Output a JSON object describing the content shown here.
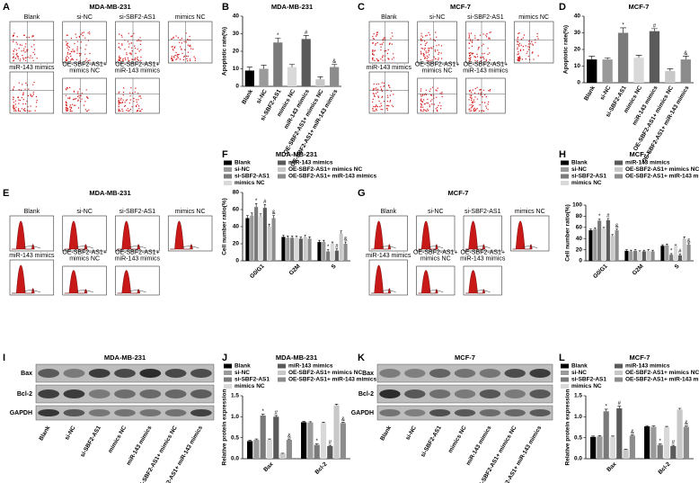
{
  "images": [
    {
      "label": "A",
      "title": "MDA-MB-231",
      "kind": "flow",
      "plots": [
        [
          "Blank"
        ],
        [
          "si-NC"
        ],
        [
          "si-SBF2-AS1"
        ],
        [
          "mimics NC"
        ],
        [
          "miR-143 mimics"
        ],
        [
          "OE-SBF2-AS1+",
          "mimics NC"
        ],
        [
          "OE-SBF2-AS1+",
          "miR-143 mimics"
        ]
      ]
    },
    {
      "label": "C",
      "title": "MCF-7",
      "kind": "flow",
      "plots": [
        [
          "Blank"
        ],
        [
          "si-NC"
        ],
        [
          "si-SBF2-AS1"
        ],
        [
          "mimics NC"
        ],
        [
          "miR-143 mimics"
        ],
        [
          "OE-SBF2-AS1+",
          "mimics NC"
        ],
        [
          "OE-SBF2-AS1+",
          "miR-143 mimics"
        ]
      ]
    },
    {
      "label": "E",
      "title": "MDA-MB-231",
      "kind": "hist",
      "plots": [
        [
          "Blank"
        ],
        [
          "si-NC"
        ],
        [
          "si-SBF2-AS1"
        ],
        [
          "mimics NC"
        ],
        [
          "miR-143 mimics"
        ],
        [
          "OE-SBF2-AS1+",
          "mimics NC"
        ],
        [
          "OE-SBF2-AS1+",
          "miR-143 mimics"
        ]
      ]
    },
    {
      "label": "G",
      "title": "MCF-7",
      "kind": "hist",
      "plots": [
        [
          "Blank"
        ],
        [
          "si-NC"
        ],
        [
          "si-SBF2-AS1"
        ],
        [
          "mimics NC"
        ],
        [
          "miR-143 mimics"
        ],
        [
          "OE-SBF2-AS1+",
          "mimics NC"
        ],
        [
          "OE-SBF2-AS1+",
          "miR-143 mimics"
        ]
      ]
    },
    {
      "label": "I",
      "title": "MDA-MB-231",
      "kind": "blot",
      "rows": [
        "Bax",
        "Bcl-2",
        "GAPDH"
      ],
      "lanes": [
        "Blank",
        "si-NC",
        "si-SBF2-AS1",
        "mimics NC",
        "miR-143 mimics",
        "OE-SBF2-AS1+ mimics NC",
        "OE-SBF2-AS1+ miR-143 mimics"
      ]
    },
    {
      "label": "K",
      "title": "MCF-7",
      "kind": "blot",
      "rows": [
        "Bax",
        "Bcl-2",
        "GAPDH"
      ],
      "lanes": [
        "Blank",
        "si-NC",
        "si-SBF2-AS1",
        "mimics NC",
        "miR-143 mimics",
        "OE-SBF2-AS1+ mimics NC",
        "OE-SBF2-AS1+ miR-143 mimics"
      ]
    }
  ],
  "chart_data": [
    {
      "type": "bar",
      "panel_label": "B",
      "title": "MDA-MB-231",
      "ylabel": "Apoptotic rate(%)",
      "categories": [
        "Blank",
        "si-NC",
        "si-SBF2-AS1",
        "mimics NC",
        "miR-143 mimics",
        "OE-SBF2-AS1+ mimics NC",
        "OE-SBF2-AS1+ miR-143 mimics"
      ],
      "values": [
        9,
        10,
        25,
        11,
        27,
        4,
        11
      ],
      "errors": [
        2,
        2,
        2.5,
        1.5,
        2,
        1.5,
        1.5
      ],
      "markers": [
        null,
        null,
        "*",
        null,
        "#",
        null,
        "&"
      ],
      "colors": [
        "#000000",
        "#9a9a9a",
        "#7a7a7a",
        "#d9d9d9",
        "#5a5a5a",
        "#c8c8c8",
        "#8c8c8c"
      ],
      "ylim": [
        0,
        40
      ],
      "yticks": [
        0,
        10,
        20,
        30,
        40
      ]
    },
    {
      "type": "bar",
      "panel_label": "D",
      "title": "MCF-7",
      "ylabel": "Apoptotic rate(%)",
      "categories": [
        "Blank",
        "si-NC",
        "si-SBF2-AS1",
        "mimics NC",
        "miR-143 mimics",
        "OE-SBF2-AS1+ mimics NC",
        "OE-SBF2-AS1+ miR-143 mimics"
      ],
      "values": [
        14,
        14,
        30,
        15,
        31,
        7,
        14
      ],
      "errors": [
        2,
        1,
        3,
        1.5,
        1.5,
        1.5,
        2
      ],
      "markers": [
        null,
        null,
        "*",
        null,
        "#",
        null,
        "&"
      ],
      "colors": [
        "#000000",
        "#9a9a9a",
        "#7a7a7a",
        "#d9d9d9",
        "#5a5a5a",
        "#c8c8c8",
        "#8c8c8c"
      ],
      "ylim": [
        0,
        40
      ],
      "yticks": [
        0,
        10,
        20,
        30,
        40
      ]
    },
    {
      "type": "grouped_bar",
      "panel_label": "F",
      "title": "MDA-MB-231",
      "ylabel": "Cell number ratio(%)",
      "categories": [
        "G0/G1",
        "G2M",
        "S"
      ],
      "series": [
        {
          "name": "Blank",
          "color": "#000000",
          "values": [
            50,
            28,
            22
          ],
          "errors": [
            3,
            2,
            2
          ],
          "markers": [
            null,
            null,
            null
          ]
        },
        {
          "name": "si-NC",
          "color": "#9a9a9a",
          "values": [
            53,
            27,
            22
          ],
          "errors": [
            3,
            2,
            2
          ],
          "markers": [
            null,
            null,
            null
          ]
        },
        {
          "name": "si-SBF2-AS1",
          "color": "#7a7a7a",
          "values": [
            63,
            27,
            11
          ],
          "errors": [
            4,
            2,
            2
          ],
          "markers": [
            "*",
            null,
            "*"
          ]
        },
        {
          "name": "mimics NC",
          "color": "#d9d9d9",
          "values": [
            52,
            27,
            20
          ],
          "errors": [
            3,
            2,
            2
          ],
          "markers": [
            null,
            null,
            null
          ]
        },
        {
          "name": "miR-143 mimics",
          "color": "#5a5a5a",
          "values": [
            62,
            26,
            12
          ],
          "errors": [
            4,
            2,
            2
          ],
          "markers": [
            "#",
            null,
            "#"
          ]
        },
        {
          "name": "OE-SBF2-AS1+ mimics NC",
          "color": "#c8c8c8",
          "values": [
            40,
            28,
            32
          ],
          "errors": [
            3,
            2,
            3
          ],
          "markers": [
            null,
            null,
            null
          ]
        },
        {
          "name": "OE-SBF2-AS1+ miR-143 mimics",
          "color": "#8c8c8c",
          "values": [
            50,
            26,
            20
          ],
          "errors": [
            3,
            2,
            2
          ],
          "markers": [
            "&",
            null,
            "&"
          ]
        }
      ],
      "ylim": [
        0,
        80
      ],
      "yticks": [
        0,
        20,
        40,
        60,
        80
      ]
    },
    {
      "type": "grouped_bar",
      "panel_label": "H",
      "title": "MCF-7",
      "ylabel": "Cell number ratio(%)",
      "categories": [
        "G0/G1",
        "G2M",
        "S"
      ],
      "series": [
        {
          "name": "Blank",
          "color": "#000000",
          "values": [
            55,
            18,
            27
          ],
          "errors": [
            2,
            2,
            2
          ],
          "markers": [
            null,
            null,
            null
          ]
        },
        {
          "name": "si-NC",
          "color": "#9a9a9a",
          "values": [
            57,
            17,
            28
          ],
          "errors": [
            2,
            2,
            2
          ],
          "markers": [
            null,
            null,
            null
          ]
        },
        {
          "name": "si-SBF2-AS1",
          "color": "#7a7a7a",
          "values": [
            72,
            18,
            11
          ],
          "errors": [
            3,
            2,
            2
          ],
          "markers": [
            "*",
            null,
            "*"
          ]
        },
        {
          "name": "mimics NC",
          "color": "#d9d9d9",
          "values": [
            58,
            16,
            27
          ],
          "errors": [
            2,
            2,
            2
          ],
          "markers": [
            null,
            null,
            null
          ]
        },
        {
          "name": "miR-143 mimics",
          "color": "#5a5a5a",
          "values": [
            73,
            17,
            10
          ],
          "errors": [
            3,
            2,
            2
          ],
          "markers": [
            "#",
            null,
            "#"
          ]
        },
        {
          "name": "OE-SBF2-AS1+ mimics NC",
          "color": "#c8c8c8",
          "values": [
            45,
            18,
            40
          ],
          "errors": [
            2,
            2,
            3
          ],
          "markers": [
            null,
            null,
            null
          ]
        },
        {
          "name": "OE-SBF2-AS1+ miR-143 mimics",
          "color": "#8c8c8c",
          "values": [
            55,
            17,
            29
          ],
          "errors": [
            2,
            2,
            2
          ],
          "markers": [
            "&",
            null,
            "&"
          ]
        }
      ],
      "ylim": [
        0,
        100
      ],
      "yticks": [
        0,
        20,
        40,
        60,
        80,
        100
      ]
    },
    {
      "type": "grouped_bar",
      "panel_label": "J",
      "title": "MDA-MB-231",
      "ylabel": "Relative protein expression",
      "categories": [
        "Bax",
        "Bcl-2"
      ],
      "series": [
        {
          "name": "Blank",
          "color": "#000000",
          "values": [
            0.42,
            0.87
          ],
          "errors": [
            0.02,
            0.02
          ],
          "markers": [
            null,
            null
          ]
        },
        {
          "name": "si-NC",
          "color": "#9a9a9a",
          "values": [
            0.45,
            0.86
          ],
          "errors": [
            0.02,
            0.02
          ],
          "markers": [
            null,
            null
          ]
        },
        {
          "name": "si-SBF2-AS1",
          "color": "#7a7a7a",
          "values": [
            1.03,
            0.33
          ],
          "errors": [
            0.03,
            0.02
          ],
          "markers": [
            "*",
            "*"
          ]
        },
        {
          "name": "mimics NC",
          "color": "#d9d9d9",
          "values": [
            0.45,
            0.85
          ],
          "errors": [
            0.02,
            0.02
          ],
          "markers": [
            null,
            null
          ]
        },
        {
          "name": "miR-143 mimics",
          "color": "#5a5a5a",
          "values": [
            1.0,
            0.3
          ],
          "errors": [
            0.03,
            0.02
          ],
          "markers": [
            "#",
            "#"
          ]
        },
        {
          "name": "OE-SBF2-AS1+ mimics NC",
          "color": "#c8c8c8",
          "values": [
            0.12,
            1.27
          ],
          "errors": [
            0.01,
            0.03
          ],
          "markers": [
            null,
            null
          ]
        },
        {
          "name": "OE-SBF2-AS1+ miR-143 mimics",
          "color": "#8c8c8c",
          "values": [
            0.45,
            0.85
          ],
          "errors": [
            0.02,
            0.02
          ],
          "markers": [
            "&",
            "&"
          ]
        }
      ],
      "ylim": [
        0,
        1.5
      ],
      "yticks": [
        {
          "value": 0,
          "label": "0.0"
        },
        0.5,
        {
          "value": 1,
          "label": "1.0"
        },
        1.5
      ]
    },
    {
      "type": "grouped_bar",
      "panel_label": "L",
      "title": "MCF-7",
      "ylabel": "Relative protein expression",
      "categories": [
        "Bax",
        "Bcl-2"
      ],
      "series": [
        {
          "name": "Blank",
          "color": "#000000",
          "values": [
            0.52,
            0.77
          ],
          "errors": [
            0.02,
            0.02
          ],
          "markers": [
            null,
            null
          ]
        },
        {
          "name": "si-NC",
          "color": "#9a9a9a",
          "values": [
            0.53,
            0.76
          ],
          "errors": [
            0.02,
            0.02
          ],
          "markers": [
            null,
            null
          ]
        },
        {
          "name": "si-SBF2-AS1",
          "color": "#7a7a7a",
          "values": [
            1.13,
            0.33
          ],
          "errors": [
            0.05,
            0.02
          ],
          "markers": [
            "*",
            "*"
          ]
        },
        {
          "name": "mimics NC",
          "color": "#d9d9d9",
          "values": [
            0.52,
            0.75
          ],
          "errors": [
            0.02,
            0.02
          ],
          "markers": [
            null,
            null
          ]
        },
        {
          "name": "miR-143 mimics",
          "color": "#5a5a5a",
          "values": [
            1.2,
            0.3
          ],
          "errors": [
            0.05,
            0.02
          ],
          "markers": [
            "#",
            "#"
          ]
        },
        {
          "name": "OE-SBF2-AS1+ mimics NC",
          "color": "#c8c8c8",
          "values": [
            0.22,
            1.17
          ],
          "errors": [
            0.01,
            0.03
          ],
          "markers": [
            null,
            null
          ]
        },
        {
          "name": "OE-SBF2-AS1+ miR-143 mimics",
          "color": "#8c8c8c",
          "values": [
            0.55,
            0.76
          ],
          "errors": [
            0.02,
            0.02
          ],
          "markers": [
            "&",
            "&"
          ]
        }
      ],
      "ylim": [
        0,
        1.5
      ],
      "yticks": [
        {
          "value": 0,
          "label": "0.0"
        },
        0.5,
        {
          "value": 1,
          "label": "1.0"
        },
        1.5
      ]
    }
  ]
}
